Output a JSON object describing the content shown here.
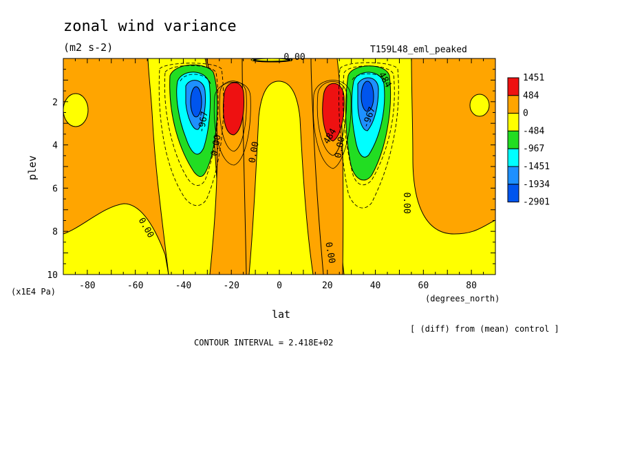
{
  "chart_data": {
    "type": "heatmap",
    "title": "zonal wind variance",
    "units": "(m2 s-2)",
    "run_label": "T159L48_eml_peaked",
    "xlabel": "lat",
    "x_units": "(degrees_north)",
    "ylabel": "plev",
    "y_units": "(x1E4 Pa)",
    "x_ticks": [
      "-80",
      "-60",
      "-40",
      "-20",
      "0",
      "20",
      "40",
      "60",
      "80"
    ],
    "y_ticks": [
      "2",
      "4",
      "6",
      "8",
      "10"
    ],
    "xlim": [
      -90,
      90
    ],
    "ylim": [
      10,
      0
    ],
    "y_inverted": true,
    "colorbar": {
      "labels": [
        "1451",
        "484",
        "0",
        "-484",
        "-967",
        "-1451",
        "-1934",
        "-2901"
      ],
      "colors": [
        "#ee1111",
        "#ffa500",
        "#ffff00",
        "#22dd22",
        "#00ffff",
        "#1e90ff",
        "#0055ee"
      ]
    },
    "contour_labels": [
      "-967",
      "0.00",
      "0.00",
      "0.00",
      "484",
      "0.00",
      "-967",
      "484",
      "0.00",
      "0.00",
      "0.00"
    ],
    "annotation_diff": "[ (diff) from (mean) control ]",
    "contour_interval": "CONTOUR INTERVAL = 2.418E+02",
    "features": [
      {
        "lat": -35,
        "plev": 2.2,
        "value": -2901,
        "kind": "min"
      },
      {
        "lat": -21,
        "plev": 2.6,
        "value": 1451,
        "kind": "max"
      },
      {
        "lat": 22,
        "plev": 2.6,
        "value": 1451,
        "kind": "max"
      },
      {
        "lat": 36,
        "plev": 2.0,
        "value": -2901,
        "kind": "min"
      }
    ]
  }
}
